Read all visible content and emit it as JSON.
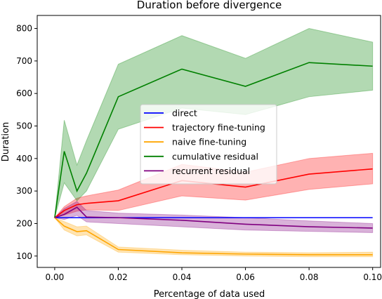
{
  "chart_data": {
    "type": "line",
    "title": "Duration before divergence",
    "xlabel": "Percentage of data used",
    "ylabel": "Duration",
    "xlim": [
      -0.0055,
      0.1025
    ],
    "ylim": [
      65,
      840
    ],
    "xticks": [
      0.0,
      0.02,
      0.04,
      0.06,
      0.08,
      0.1
    ],
    "xtick_labels": [
      "0.00",
      "0.02",
      "0.04",
      "0.06",
      "0.08",
      "0.10"
    ],
    "yticks": [
      100,
      200,
      300,
      400,
      500,
      600,
      700,
      800
    ],
    "ytick_labels": [
      "100",
      "200",
      "300",
      "400",
      "500",
      "600",
      "700",
      "800"
    ],
    "grid": false,
    "legend_position": "center",
    "series": [
      {
        "name": "direct",
        "color": "#0000ff",
        "fill": null,
        "x": [
          0.0,
          0.003,
          0.007,
          0.01,
          0.02,
          0.04,
          0.06,
          0.08,
          0.1
        ],
        "y": [
          218,
          218,
          218,
          218,
          218,
          218,
          218,
          218,
          218
        ],
        "lower": null,
        "upper": null
      },
      {
        "name": "trajectory fine-tuning",
        "color": "#ff0000",
        "fill": "#ff0000",
        "x": [
          0.0,
          0.003,
          0.007,
          0.01,
          0.02,
          0.04,
          0.06,
          0.08,
          0.1
        ],
        "y": [
          218,
          240,
          258,
          262,
          270,
          332,
          312,
          352,
          368
        ],
        "lower": [
          218,
          226,
          238,
          242,
          240,
          285,
          272,
          305,
          322
        ],
        "upper": [
          218,
          252,
          278,
          285,
          303,
          382,
          358,
          400,
          416
        ]
      },
      {
        "name": "naive fine-tuning",
        "color": "#ffa500",
        "fill": "#ffa500",
        "x": [
          0.0,
          0.003,
          0.007,
          0.01,
          0.02,
          0.04,
          0.06,
          0.08,
          0.1
        ],
        "y": [
          218,
          192,
          175,
          178,
          120,
          110,
          106,
          104,
          104
        ],
        "lower": [
          218,
          180,
          162,
          165,
          112,
          104,
          100,
          98,
          98
        ],
        "upper": [
          218,
          206,
          190,
          192,
          128,
          118,
          112,
          110,
          112
        ]
      },
      {
        "name": "cumulative residual",
        "color": "#008000",
        "fill": "#008000",
        "x": [
          0.0,
          0.003,
          0.007,
          0.01,
          0.02,
          0.04,
          0.06,
          0.08,
          0.1
        ],
        "y": [
          218,
          422,
          300,
          355,
          590,
          675,
          622,
          695,
          684
        ],
        "lower": [
          218,
          325,
          270,
          300,
          490,
          555,
          535,
          590,
          610
        ],
        "upper": [
          218,
          518,
          380,
          455,
          690,
          778,
          708,
          800,
          758
        ]
      },
      {
        "name": "recurrent residual",
        "color": "#800080",
        "fill": "#800080",
        "x": [
          0.0,
          0.003,
          0.007,
          0.01,
          0.02,
          0.04,
          0.06,
          0.08,
          0.1
        ],
        "y": [
          218,
          228,
          250,
          220,
          218,
          210,
          198,
          190,
          186
        ],
        "lower": [
          218,
          212,
          225,
          205,
          200,
          190,
          180,
          176,
          172
        ],
        "upper": [
          218,
          246,
          268,
          240,
          232,
          226,
          218,
          208,
          200
        ]
      }
    ]
  }
}
